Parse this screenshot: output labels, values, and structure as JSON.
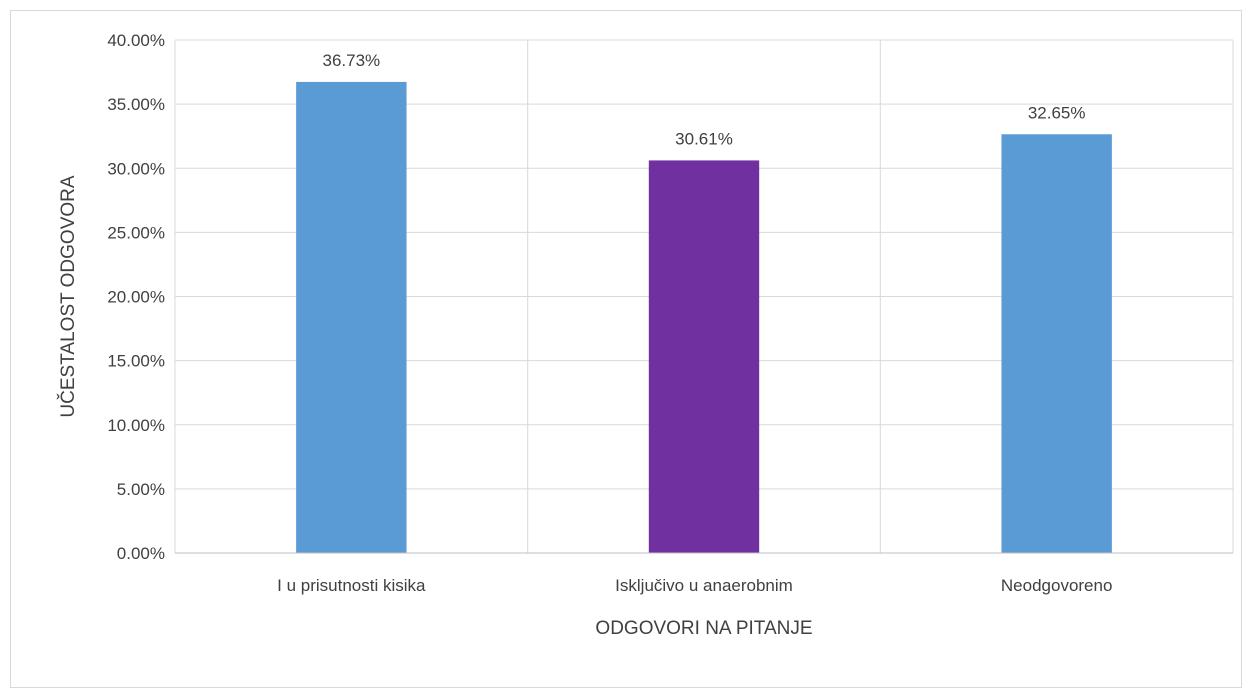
{
  "chart_data": {
    "type": "bar",
    "title": "",
    "xlabel": "ODGOVORI NA PITANJE",
    "ylabel": "UČESTALOST ODGOVORA",
    "categories": [
      "I u prisutnosti kisika",
      "Isključivo u anaerobnim",
      "Neodgovoreno"
    ],
    "values": [
      36.73,
      30.61,
      32.65
    ],
    "value_labels": [
      "36.73%",
      "30.61%",
      "32.65%"
    ],
    "bar_colors": [
      "#5b9bd5",
      "#7030a0",
      "#5b9bd5"
    ],
    "ylim": [
      0,
      40
    ],
    "yticks": [
      0,
      5,
      10,
      15,
      20,
      25,
      30,
      35,
      40
    ],
    "ytick_labels": [
      "0.00%",
      "5.00%",
      "10.00%",
      "15.00%",
      "20.00%",
      "25.00%",
      "30.00%",
      "35.00%",
      "40.00%"
    ],
    "grid": true,
    "legend": "none"
  }
}
